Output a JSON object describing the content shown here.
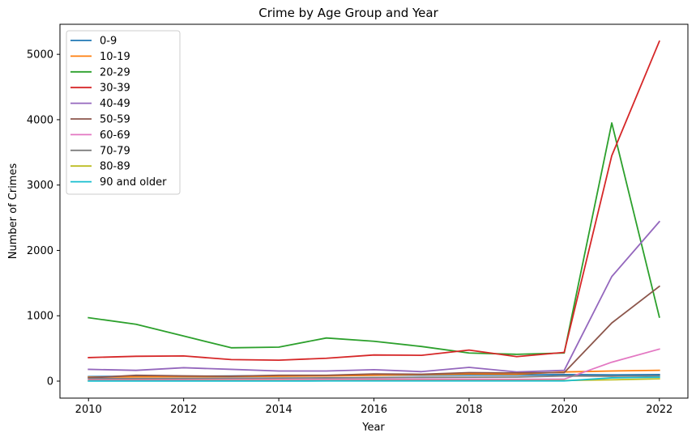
{
  "chart_data": {
    "type": "line",
    "title": "Crime by Age Group and Year",
    "xlabel": "Year",
    "ylabel": "Number of Crimes",
    "x": [
      2010,
      2011,
      2012,
      2013,
      2014,
      2015,
      2016,
      2017,
      2018,
      2019,
      2020,
      2021,
      2022
    ],
    "xlim": [
      2009.4,
      2022.6
    ],
    "ylim": [
      -260,
      5460
    ],
    "xticks": [
      "2010",
      "2012",
      "2014",
      "2016",
      "2018",
      "2020",
      "2022"
    ],
    "yticks": [
      "0",
      "1000",
      "2000",
      "3000",
      "4000",
      "5000"
    ],
    "grid": false,
    "legend": "top-left",
    "series": [
      {
        "name": "0-9",
        "color": "#1f77b4",
        "values": [
          70,
          75,
          72,
          78,
          82,
          85,
          90,
          92,
          95,
          93,
          100,
          95,
          100
        ]
      },
      {
        "name": "10-19",
        "color": "#ff7f0e",
        "values": [
          60,
          65,
          68,
          70,
          75,
          80,
          90,
          100,
          110,
          105,
          140,
          155,
          165
        ]
      },
      {
        "name": "20-29",
        "color": "#2ca02c",
        "values": [
          970,
          870,
          690,
          510,
          520,
          660,
          610,
          530,
          430,
          410,
          430,
          3950,
          980
        ]
      },
      {
        "name": "30-39",
        "color": "#d62728",
        "values": [
          360,
          380,
          385,
          330,
          320,
          350,
          400,
          395,
          475,
          375,
          440,
          3450,
          5200
        ]
      },
      {
        "name": "40-49",
        "color": "#9467bd",
        "values": [
          180,
          165,
          205,
          180,
          155,
          155,
          175,
          145,
          210,
          140,
          165,
          1600,
          2440
        ]
      },
      {
        "name": "50-59",
        "color": "#8c564b",
        "values": [
          50,
          90,
          80,
          75,
          90,
          90,
          110,
          105,
          130,
          125,
          130,
          890,
          1450
        ]
      },
      {
        "name": "60-69",
        "color": "#e377c2",
        "values": [
          20,
          20,
          22,
          25,
          28,
          30,
          30,
          30,
          30,
          28,
          30,
          290,
          490
        ]
      },
      {
        "name": "70-79",
        "color": "#7f7f7f",
        "values": [
          40,
          40,
          42,
          45,
          48,
          50,
          55,
          58,
          60,
          62,
          80,
          75,
          80
        ]
      },
      {
        "name": "80-89",
        "color": "#bcbd22",
        "values": [
          5,
          5,
          5,
          6,
          6,
          6,
          7,
          7,
          8,
          8,
          9,
          20,
          35
        ]
      },
      {
        "name": "90 and older",
        "color": "#17becf",
        "values": [
          2,
          2,
          2,
          2,
          2,
          3,
          3,
          3,
          3,
          3,
          3,
          50,
          60
        ]
      }
    ]
  }
}
